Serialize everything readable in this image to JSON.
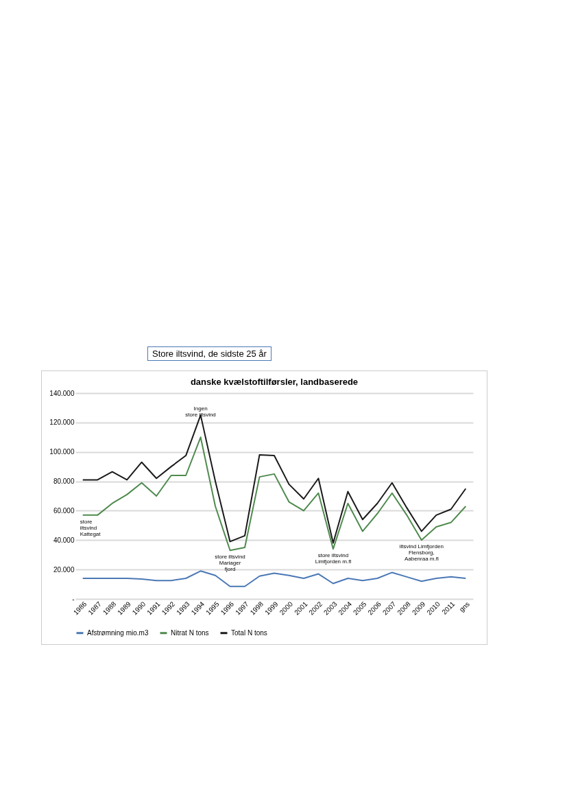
{
  "chart_data": {
    "type": "line",
    "title": "danske kvælstoftilførsler, landbaserede",
    "subtitle": "Store iltsvind, de sidste 25 år",
    "categories": [
      "1986",
      "1987",
      "1988",
      "1989",
      "1990",
      "1991",
      "1992",
      "1993",
      "1994",
      "1995",
      "1996",
      "1997",
      "1998",
      "1999",
      "2000",
      "2001",
      "2002",
      "2003",
      "2004",
      "2005",
      "2006",
      "2007",
      "2008",
      "2009",
      "2010",
      "2011",
      "gns"
    ],
    "series": [
      {
        "name": "Afstrømning mio.m3",
        "color": "#4a78b5",
        "values": [
          14000,
          14000,
          14000,
          14000,
          13500,
          12500,
          12500,
          14000,
          19000,
          16000,
          8500,
          8500,
          15500,
          17500,
          16000,
          14000,
          17000,
          10500,
          14000,
          12500,
          14000,
          18000,
          15000,
          12000,
          14000,
          15000,
          14000
        ]
      },
      {
        "name": "Nitrat N tons",
        "color": "#4e8a4e",
        "values": [
          57000,
          57000,
          65000,
          71000,
          79000,
          70000,
          84000,
          84000,
          110000,
          63000,
          33000,
          35000,
          83000,
          85000,
          66000,
          60000,
          72000,
          34000,
          65000,
          46000,
          58000,
          72000,
          57000,
          40000,
          49000,
          52000,
          63000
        ]
      },
      {
        "name": "Total N tons",
        "color": "#1a1a1a",
        "values": [
          81000,
          81000,
          86500,
          81000,
          93000,
          82000,
          90000,
          97500,
          125000,
          80000,
          39000,
          43000,
          98000,
          97500,
          78000,
          68000,
          82000,
          38000,
          73000,
          54000,
          65000,
          79000,
          62000,
          46000,
          57000,
          61000,
          75000
        ]
      }
    ],
    "ylim": [
      0,
      140000
    ],
    "yticks": [
      {
        "value": 0,
        "label": "-"
      },
      {
        "value": 20000,
        "label": "20.000"
      },
      {
        "value": 40000,
        "label": "40.000"
      },
      {
        "value": 60000,
        "label": "60.000"
      },
      {
        "value": 80000,
        "label": "80.000"
      },
      {
        "value": 100000,
        "label": "100.000"
      },
      {
        "value": 120000,
        "label": "120.000"
      },
      {
        "value": 140000,
        "label": "140.000"
      }
    ],
    "grid": "y",
    "legend": "bottom",
    "annotations": [
      {
        "text": "Ingen\nstore iltsvind",
        "x": "1994",
        "y": 125000
      },
      {
        "text": "store\niltsvind\nKattegat",
        "x": "1986",
        "y": 57000
      },
      {
        "text": "store iltsvind\nMariager\nfjord",
        "x": "1996",
        "y": 33000
      },
      {
        "text": "store iltsvind\nLimfjorden m.fl",
        "x": "2003",
        "y": 34000
      },
      {
        "text": "iltsvind Limfjorden\nFlensborg,\nAabenraa m.fl",
        "x": "2009",
        "y": 40000
      }
    ]
  }
}
